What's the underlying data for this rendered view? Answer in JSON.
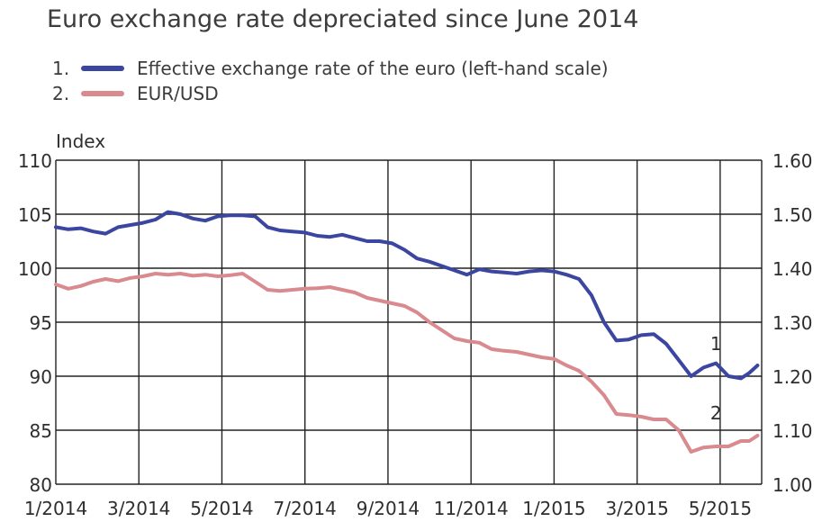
{
  "title": "Euro exchange rate depreciated since June 2014",
  "legend": [
    {
      "num": "1.",
      "label": "Effective exchange rate of the euro (left-hand scale)",
      "color": "#3b46a0"
    },
    {
      "num": "2.",
      "label": "EUR/USD",
      "color": "#d98a8e"
    }
  ],
  "chart_data": {
    "type": "line",
    "title": "Euro exchange rate depreciated since June 2014",
    "ylabel": "Index",
    "ylim": [
      80,
      110
    ],
    "y2lim": [
      1.0,
      1.6
    ],
    "yticks": [
      "80",
      "85",
      "90",
      "95",
      "100",
      "105",
      "110"
    ],
    "y2ticks": [
      "1.00",
      "1.10",
      "1.20",
      "1.30",
      "1.40",
      "1.50",
      "1.60"
    ],
    "xticks": [
      "1/2014",
      "3/2014",
      "5/2014",
      "7/2014",
      "9/2014",
      "11/2014",
      "1/2015",
      "3/2015",
      "5/2015"
    ],
    "xrange_months": [
      0,
      17
    ],
    "grid": true,
    "series": [
      {
        "name": "Effective exchange rate of the euro (left-hand scale)",
        "axis": "left",
        "label": "1",
        "color": "#3b46a0",
        "x": [
          0,
          0.3,
          0.6,
          0.9,
          1.2,
          1.5,
          1.8,
          2.1,
          2.4,
          2.7,
          3.0,
          3.3,
          3.6,
          3.9,
          4.2,
          4.5,
          4.8,
          5.1,
          5.4,
          5.7,
          6.0,
          6.3,
          6.6,
          6.9,
          7.2,
          7.5,
          7.8,
          8.1,
          8.4,
          8.7,
          9.0,
          9.3,
          9.6,
          9.9,
          10.2,
          10.5,
          10.8,
          11.1,
          11.4,
          11.7,
          12.0,
          12.3,
          12.6,
          12.9,
          13.2,
          13.5,
          13.8,
          14.1,
          14.4,
          14.7,
          15.0,
          15.3,
          15.6,
          15.9,
          16.2,
          16.5,
          16.7,
          16.9
        ],
        "y": [
          103.8,
          103.6,
          103.7,
          103.4,
          103.2,
          103.8,
          104.0,
          104.2,
          104.5,
          105.2,
          105.0,
          104.6,
          104.4,
          104.8,
          104.9,
          104.9,
          104.8,
          103.8,
          103.5,
          103.4,
          103.3,
          103.0,
          102.9,
          103.1,
          102.8,
          102.5,
          102.5,
          102.3,
          101.7,
          100.9,
          100.6,
          100.2,
          99.8,
          99.4,
          99.9,
          99.7,
          99.6,
          99.5,
          99.7,
          99.8,
          99.7,
          99.4,
          99.0,
          97.5,
          95.0,
          93.3,
          93.4,
          93.8,
          93.9,
          93.0,
          91.5,
          90.0,
          90.8,
          91.2,
          90.0,
          89.8,
          90.3,
          91.0
        ]
      },
      {
        "name": "EUR/USD",
        "axis": "right",
        "label": "2",
        "color": "#d98a8e",
        "x": [
          0,
          0.3,
          0.6,
          0.9,
          1.2,
          1.5,
          1.8,
          2.1,
          2.4,
          2.7,
          3.0,
          3.3,
          3.6,
          3.9,
          4.2,
          4.5,
          4.8,
          5.1,
          5.4,
          5.7,
          6.0,
          6.3,
          6.6,
          6.9,
          7.2,
          7.5,
          7.8,
          8.1,
          8.4,
          8.7,
          9.0,
          9.3,
          9.6,
          9.9,
          10.2,
          10.5,
          10.8,
          11.1,
          11.4,
          11.7,
          12.0,
          12.3,
          12.6,
          12.9,
          13.2,
          13.5,
          13.8,
          14.1,
          14.4,
          14.7,
          15.0,
          15.3,
          15.6,
          15.9,
          16.2,
          16.5,
          16.7,
          16.9
        ],
        "y": [
          1.37,
          1.362,
          1.367,
          1.375,
          1.38,
          1.376,
          1.382,
          1.385,
          1.39,
          1.388,
          1.39,
          1.386,
          1.388,
          1.385,
          1.387,
          1.39,
          1.375,
          1.36,
          1.358,
          1.36,
          1.362,
          1.363,
          1.365,
          1.36,
          1.355,
          1.345,
          1.34,
          1.335,
          1.33,
          1.318,
          1.3,
          1.285,
          1.27,
          1.265,
          1.262,
          1.25,
          1.247,
          1.245,
          1.24,
          1.235,
          1.232,
          1.22,
          1.21,
          1.19,
          1.165,
          1.13,
          1.128,
          1.125,
          1.12,
          1.12,
          1.1,
          1.06,
          1.068,
          1.07,
          1.07,
          1.08,
          1.08,
          1.09
        ]
      }
    ]
  }
}
